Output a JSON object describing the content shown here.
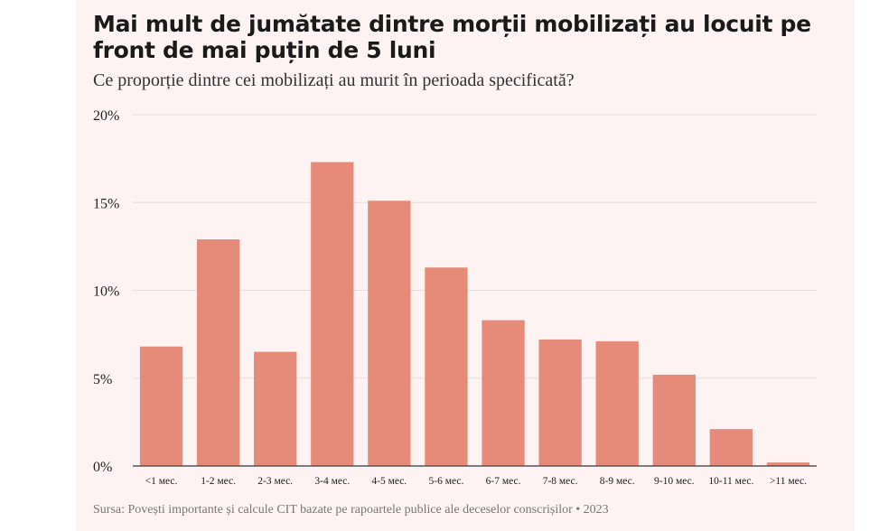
{
  "header": {
    "title": "Mai mult de jumătate dintre morții mobilizați au locuit pe front de mai puțin de 5 luni",
    "subtitle": "Ce proporție dintre cei mobilizați au murit în perioada specificată?"
  },
  "footer": {
    "source": "Sursa: Povești importante și calcule CIT bazate pe rapoartele publice ale deceselor conscrișilor • 2023"
  },
  "colors": {
    "bar": "#e68a79",
    "grid": "#eadddd",
    "axis": "#555555",
    "background": "#fdf3f3"
  },
  "chart_data": {
    "type": "bar",
    "title": "Mai mult de jumătate dintre morții mobilizați au locuit pe front de mai puțin de 5 luni",
    "subtitle": "Ce proporție dintre cei mobilizați au murit în perioada specificată?",
    "xlabel": "",
    "ylabel": "",
    "categories": [
      "<1 мес.",
      "1-2 мес.",
      "2-3 мес.",
      "3-4 мес.",
      "4-5 мес.",
      "5-6 мес.",
      "6-7 мес.",
      "7-8 мес.",
      "8-9 мес.",
      "9-10 мес.",
      "10-11 мес.",
      ">11 мес."
    ],
    "values": [
      6.8,
      12.9,
      6.5,
      17.3,
      15.1,
      11.3,
      8.3,
      7.2,
      7.1,
      5.2,
      2.1,
      0.2
    ],
    "ylim": [
      0,
      20
    ],
    "yticks": [
      0,
      5,
      10,
      15,
      20
    ],
    "ytick_labels": [
      "0%",
      "5%",
      "10%",
      "15%",
      "20%"
    ],
    "grid": true
  }
}
